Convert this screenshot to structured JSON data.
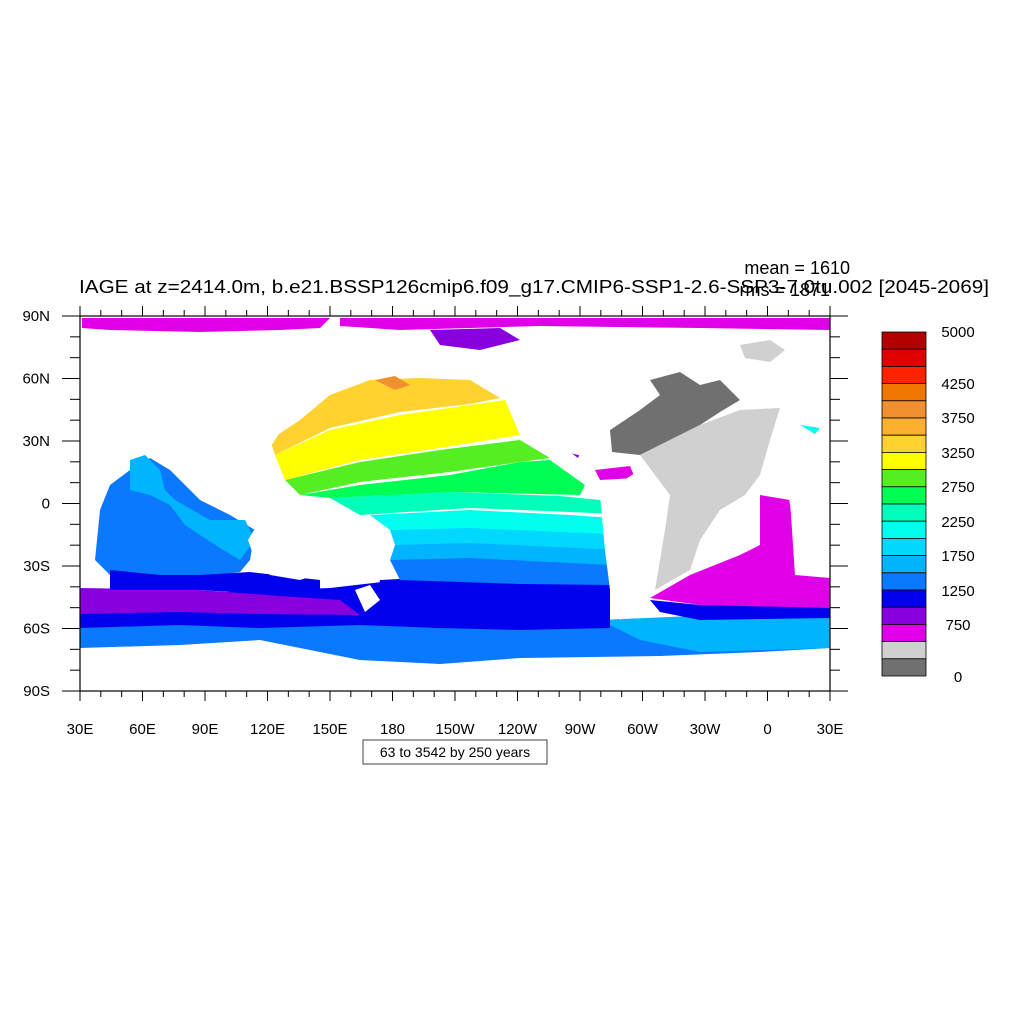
{
  "title": "IAGE at z=2414.0m, b.e21.BSSP126cmip6.f09_g17.CMIP6-SSP1-2.6-SSP3-7.0tu.002 [2045-2069]",
  "stats": {
    "mean": "mean = 1610",
    "rms": "rms = 1871"
  },
  "contour_info": "63 to 3542 by 250 years",
  "axes": {
    "y_ticks": [
      "90N",
      "60N",
      "30N",
      "0",
      "30S",
      "60S",
      "90S"
    ],
    "x_ticks": [
      "30E",
      "60E",
      "90E",
      "120E",
      "150E",
      "180",
      "150W",
      "120W",
      "90W",
      "60W",
      "30W",
      "0",
      "30E"
    ]
  },
  "colorbar": {
    "labels": [
      "5000",
      "4250",
      "3750",
      "3250",
      "2750",
      "2250",
      "1750",
      "1250",
      "750",
      "0"
    ],
    "colors": [
      "#b50000",
      "#e00000",
      "#ff2200",
      "#f07800",
      "#f09030",
      "#ffb030",
      "#ffd230",
      "#ffff00",
      "#55ee22",
      "#00ff55",
      "#00ffbb",
      "#00ffee",
      "#00d8ff",
      "#00b4ff",
      "#0a78ff",
      "#0000ee",
      "#8800dd",
      "#e000e8",
      "#d0d0d0",
      "#707070"
    ]
  },
  "chart_data": {
    "type": "heatmap",
    "variable": "IAGE",
    "depth": "z=2414.0m",
    "period": "[2045-2069]",
    "units": "years",
    "mean": 1610,
    "rms": 1871,
    "contour_min": 63,
    "contour_max": 3542,
    "contour_interval": 250,
    "colorbar_range": [
      0,
      5000
    ],
    "lon_range": [
      "30E",
      "30E"
    ],
    "lat_range": [
      "90S",
      "90N"
    ],
    "legend_position": "right"
  }
}
